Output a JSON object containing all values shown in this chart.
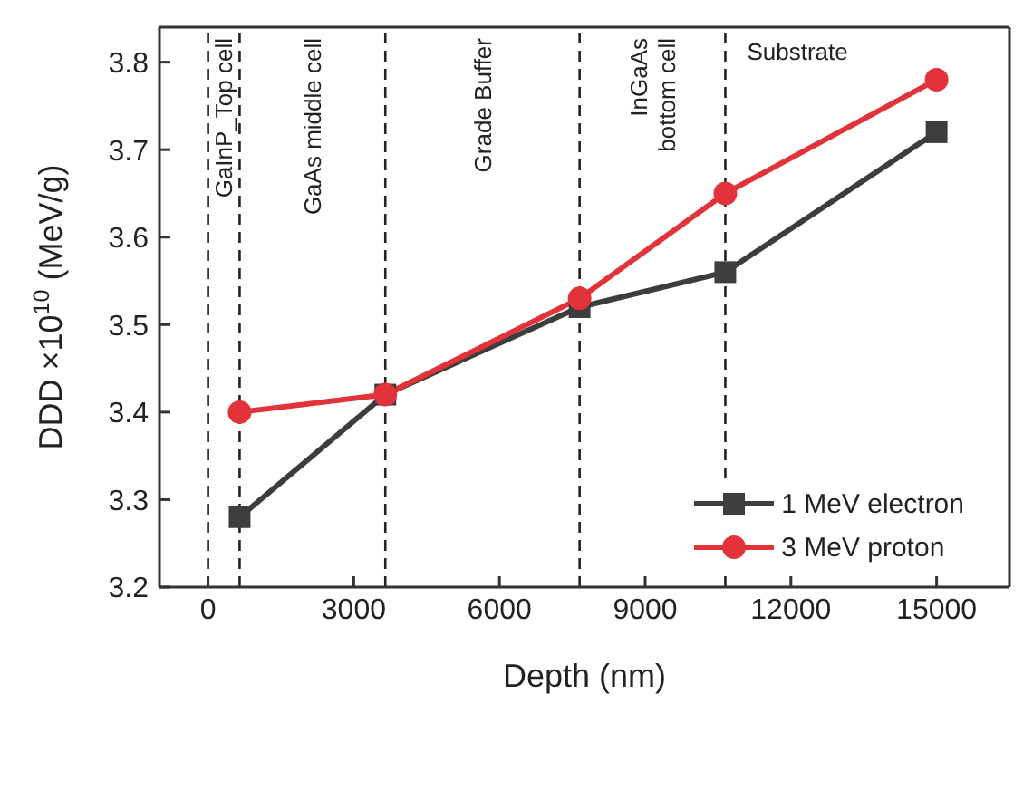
{
  "chart_data": {
    "type": "line",
    "xlabel": "Depth (nm)",
    "ylabel": "DDD ×10$^{10}$ (MeV/g)",
    "x": [
      650,
      3650,
      7650,
      10650,
      15000
    ],
    "series": [
      {
        "name": "1 MeV electron",
        "color": "#3d3d3d",
        "marker": "square",
        "values": [
          3.28,
          3.42,
          3.52,
          3.56,
          3.72
        ]
      },
      {
        "name": "3 MeV proton",
        "color": "#e2323a",
        "marker": "circle",
        "values": [
          3.4,
          3.42,
          3.53,
          3.65,
          3.78
        ]
      }
    ],
    "xlim": [
      -1000,
      16500
    ],
    "xticks": [
      0,
      3000,
      6000,
      9000,
      12000,
      15000
    ],
    "ylim": [
      3.2,
      3.84
    ],
    "yticks": [
      3.2,
      3.3,
      3.4,
      3.5,
      3.6,
      3.7,
      3.8
    ],
    "ref_lines": [
      {
        "axis": "x",
        "value": 0,
        "line_style": "dashed"
      },
      {
        "axis": "x",
        "value": 650,
        "line_style": "dashed"
      },
      {
        "axis": "x",
        "value": 3650,
        "line_style": "dashed"
      },
      {
        "axis": "x",
        "value": 7650,
        "line_style": "dashed"
      },
      {
        "axis": "x",
        "value": 10650,
        "line_style": "dashed"
      }
    ],
    "annotations": [
      "GaInP_Top cell",
      "GaAs middle cell",
      "Grade Buffer",
      "InGaAs\nbottom cell",
      "Substrate"
    ],
    "legend": "bottom right",
    "line_style": "solid"
  }
}
